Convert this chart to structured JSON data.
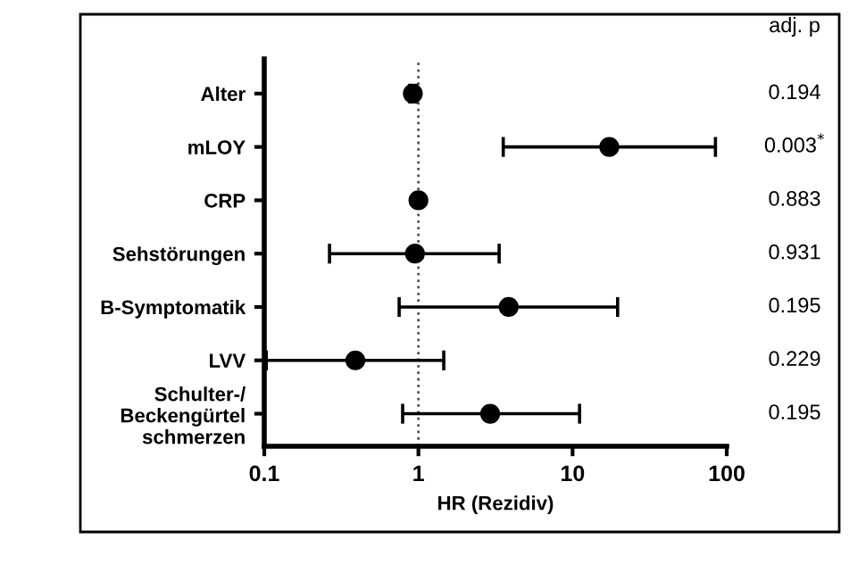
{
  "chart_data": {
    "type": "scatter",
    "orientation": "horizontal",
    "xlabel": "HR (Rezidiv)",
    "categories": [
      "Alter",
      "mLOY",
      "CRP",
      "Sehstörungen",
      "B-Symptomatik",
      "LVV",
      "Schulter-/\nBeckengürtel\nschmerzen"
    ],
    "values": [
      0.92,
      17.3,
      1.0,
      0.95,
      3.85,
      0.39,
      2.92
    ],
    "errors": [
      [
        0.88,
        0.97
      ],
      [
        3.55,
        84.5
      ],
      null,
      [
        0.265,
        3.34
      ],
      [
        0.75,
        19.6
      ],
      [
        0.103,
        1.46
      ],
      [
        0.79,
        11.1
      ]
    ],
    "color": "#000000",
    "marker": "circle",
    "log": "x",
    "xlim": [
      0.1,
      100
    ],
    "xticks": [
      0.1,
      1,
      10,
      100
    ],
    "ref_lines": [
      {
        "axis": "x",
        "value": 1,
        "line_style": "dotted",
        "color": "#555555"
      }
    ],
    "annotations": [
      "adj. p",
      "0.194",
      "0.003$^{*}$",
      "0.883",
      "0.931",
      "0.195",
      "0.229",
      "0.195"
    ],
    "grid": false,
    "legend": false
  }
}
